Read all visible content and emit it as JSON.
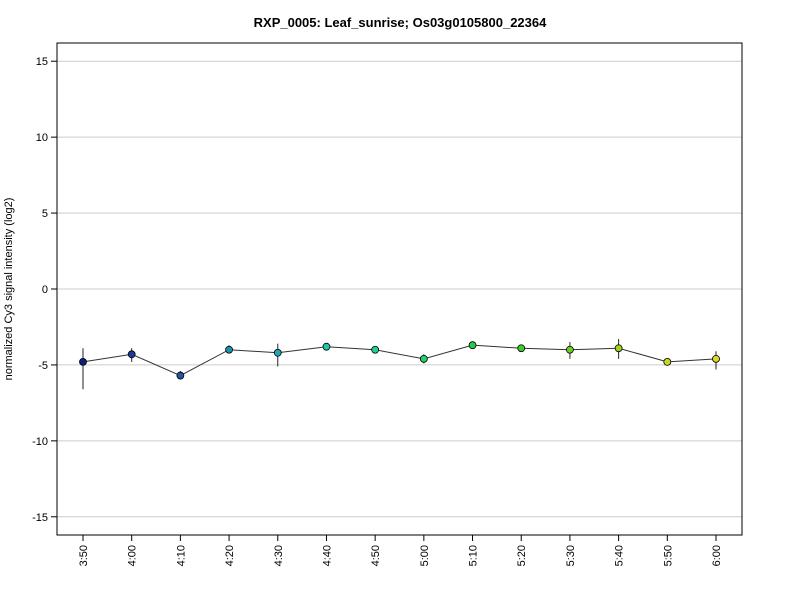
{
  "chart_data": {
    "type": "line",
    "title": "RXP_0005: Leaf_sunrise; Os03g0105800_22364",
    "xlabel": "",
    "ylabel": "normalized Cy3 signal intensity (log2)",
    "ylim": [
      -16.2,
      16.2
    ],
    "yticks": [
      -15,
      -10,
      -5,
      0,
      5,
      10,
      15
    ],
    "grid": "horizontal",
    "categories": [
      "3:50",
      "4:00",
      "4:10",
      "4:20",
      "4:30",
      "4:40",
      "4:50",
      "5:00",
      "5:10",
      "5:20",
      "5:30",
      "5:40",
      "5:50",
      "6:00"
    ],
    "values": [
      -4.8,
      -4.3,
      -5.7,
      -4.0,
      -4.2,
      -3.8,
      -4.0,
      -4.6,
      -3.7,
      -3.9,
      -4.0,
      -3.9,
      -4.8,
      -4.6
    ],
    "error_low": [
      -6.6,
      -4.8,
      -5.9,
      -4.2,
      -5.1,
      -3.9,
      -4.1,
      -4.9,
      -3.9,
      -4.0,
      -4.6,
      -4.6,
      -4.9,
      -5.3
    ],
    "error_high": [
      -3.9,
      -3.9,
      -5.4,
      -3.7,
      -3.6,
      -3.7,
      -3.9,
      -4.3,
      -3.5,
      -3.8,
      -3.5,
      -3.3,
      -4.7,
      -4.1
    ],
    "point_colors": [
      "#0a1e7a",
      "#1b3a9a",
      "#2456a8",
      "#1f8fb0",
      "#1ea9b5",
      "#1ec7a8",
      "#22cf8e",
      "#22d06f",
      "#24cd4d",
      "#3ccc2e",
      "#6ccf22",
      "#9fd41e",
      "#c7d61e",
      "#e0d820"
    ]
  }
}
